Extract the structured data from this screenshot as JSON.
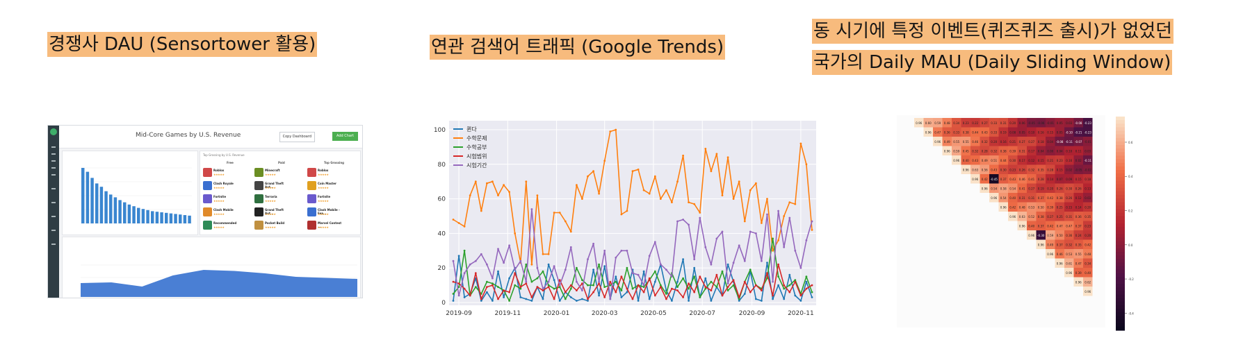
{
  "headings": {
    "competitor_dau": "경쟁사 DAU (Sensortower 활용)",
    "search_traffic": "연관 검색어 트래픽 (Google Trends)",
    "daily_mau_line1": "동 시기에 특정 이벤트(퀴즈퀴즈 출시)가 없었던",
    "daily_mau_line2": "국가의 Daily MAU (Daily Sliding Window)"
  },
  "sensortower": {
    "title": "Mid-Core Games by U.S. Revenue",
    "compare_button": "Copy Dashboard",
    "add_button": "Add Chart",
    "top_card_caption": "Top Grossing by U.S. Revenue",
    "columns": [
      "Free",
      "Paid",
      "Top Grossing"
    ],
    "apps": [
      {
        "name": "Roblox",
        "col": 0,
        "row": 0,
        "color": "#d04848"
      },
      {
        "name": "Clash Royale",
        "col": 0,
        "row": 1,
        "color": "#3a6fd0"
      },
      {
        "name": "Fortnite",
        "col": 0,
        "row": 2,
        "color": "#6a5acd"
      },
      {
        "name": "Clash Mobile",
        "col": 0,
        "row": 3,
        "color": "#e08a2a"
      },
      {
        "name": "Recommended",
        "col": 0,
        "row": 4,
        "color": "#2e8b57"
      },
      {
        "name": "Minecraft",
        "col": 1,
        "row": 0,
        "color": "#6b8e23"
      },
      {
        "name": "Grand Theft Aut...",
        "col": 1,
        "row": 1,
        "color": "#444444"
      },
      {
        "name": "Terraria",
        "col": 1,
        "row": 2,
        "color": "#2f6f3f"
      },
      {
        "name": "Grand Theft Aut...",
        "col": 1,
        "row": 3,
        "color": "#222222"
      },
      {
        "name": "Pocket Build",
        "col": 1,
        "row": 4,
        "color": "#c09040"
      },
      {
        "name": "Roblox",
        "col": 2,
        "row": 0,
        "color": "#d04848"
      },
      {
        "name": "Coin Master",
        "col": 2,
        "row": 1,
        "color": "#e0a020"
      },
      {
        "name": "Fortnite",
        "col": 2,
        "row": 2,
        "color": "#6a5acd"
      },
      {
        "name": "Clash Mobile - Fea...",
        "col": 2,
        "row": 3,
        "color": "#3a6fd0"
      },
      {
        "name": "Marvel Contest ...",
        "col": 2,
        "row": 4,
        "color": "#b03030"
      }
    ],
    "bar_values": [
      100,
      93,
      82,
      72,
      66,
      58,
      52,
      47,
      42,
      38,
      34,
      31,
      28,
      26,
      24,
      22,
      21,
      20,
      19,
      18,
      17,
      16,
      15,
      14
    ],
    "area_values": [
      40,
      42,
      30,
      62,
      78,
      75,
      68,
      58,
      55,
      52
    ],
    "brand_color": "#3a86d0",
    "accent_color": "#4caf50"
  },
  "chart_data": {
    "type": "line",
    "x_tick_labels": [
      "2019-09",
      "2019-11",
      "2020-01",
      "2020-03",
      "2020-05",
      "2020-07",
      "2020-09",
      "2020-11"
    ],
    "y_ticks": [
      0,
      20,
      40,
      60,
      80,
      100
    ],
    "ylim": [
      0,
      102
    ],
    "x_start": "2019-08-25",
    "x_end": "2020-11-15",
    "series": [
      {
        "name": "퀸다",
        "color": "#1f77b4",
        "values": [
          1,
          27,
          3,
          5,
          14,
          1,
          6,
          1,
          18,
          3,
          14,
          20,
          3,
          2,
          1,
          9,
          2,
          22,
          13,
          1,
          6,
          3,
          1,
          2,
          1,
          19,
          4,
          21,
          2,
          15,
          3,
          6,
          19,
          1,
          18,
          2,
          12,
          22,
          7,
          1,
          12,
          25,
          1,
          20,
          3,
          14,
          1,
          9,
          4,
          22,
          12,
          1,
          5,
          18,
          2,
          1,
          23,
          2,
          10,
          2,
          16,
          4,
          1,
          12,
          3
        ]
      },
      {
        "name": "수학문제",
        "color": "#ff7f0e",
        "values": [
          48,
          46,
          44,
          62,
          70,
          53,
          69,
          70,
          62,
          68,
          64,
          40,
          23,
          70,
          22,
          62,
          28,
          28,
          52,
          52,
          47,
          41,
          68,
          60,
          73,
          76,
          63,
          82,
          99,
          100,
          51,
          53,
          76,
          77,
          65,
          63,
          73,
          60,
          65,
          58,
          70,
          85,
          58,
          57,
          52,
          89,
          76,
          86,
          62,
          84,
          60,
          70,
          47,
          65,
          69,
          46,
          60,
          30,
          36,
          50,
          58,
          57,
          92,
          80,
          42
        ]
      },
      {
        "name": "수학공부",
        "color": "#2ca02c",
        "values": [
          5,
          9,
          30,
          4,
          9,
          5,
          12,
          11,
          9,
          7,
          1,
          10,
          8,
          22,
          12,
          14,
          18,
          10,
          8,
          9,
          2,
          8,
          20,
          13,
          10,
          10,
          22,
          9,
          10,
          12,
          7,
          20,
          8,
          10,
          9,
          13,
          18,
          10,
          5,
          17,
          9,
          14,
          8,
          15,
          3,
          8,
          12,
          9,
          18,
          7,
          10,
          2,
          12,
          19,
          10,
          8,
          14,
          37,
          15,
          8,
          10,
          13,
          5,
          15,
          6
        ]
      },
      {
        "name": "시험범위",
        "color": "#d62728",
        "values": [
          12,
          11,
          8,
          4,
          17,
          2,
          9,
          10,
          2,
          7,
          6,
          17,
          9,
          11,
          3,
          9,
          7,
          9,
          2,
          13,
          6,
          10,
          7,
          11,
          2,
          6,
          11,
          3,
          12,
          6,
          15,
          8,
          2,
          10,
          6,
          14,
          4,
          9,
          2,
          8,
          7,
          3,
          11,
          6,
          15,
          9,
          7,
          16,
          4,
          9,
          13,
          3,
          12,
          6,
          10,
          7,
          17,
          4,
          22,
          10,
          6,
          12,
          4,
          8,
          10
        ]
      },
      {
        "name": "시험기간",
        "color": "#9467bd",
        "values": [
          24,
          4,
          17,
          22,
          24,
          28,
          22,
          14,
          31,
          23,
          33,
          19,
          24,
          12,
          54,
          20,
          8,
          12,
          21,
          10,
          19,
          32,
          12,
          7,
          25,
          34,
          12,
          30,
          2,
          26,
          30,
          30,
          17,
          16,
          10,
          27,
          35,
          22,
          19,
          15,
          47,
          48,
          45,
          25,
          49,
          32,
          22,
          37,
          41,
          11,
          23,
          33,
          24,
          41,
          40,
          24,
          51,
          12,
          53,
          32,
          49,
          30,
          20,
          36,
          47
        ]
      }
    ]
  },
  "heatmap": {
    "size": 19,
    "colorbar_ticks": [
      "0.6",
      "0.4",
      "0.2",
      "0.0",
      "-0.2",
      "-0.4"
    ],
    "vmin": -0.5,
    "vmax": 0.75
  }
}
